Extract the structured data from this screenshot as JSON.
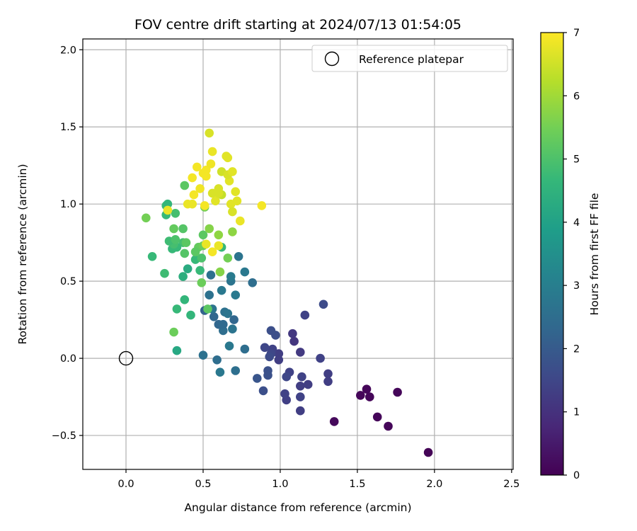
{
  "chart_data": {
    "type": "scatter",
    "title": "FOV centre drift starting at 2024/07/13 01:54:05",
    "xlabel": "Angular distance from reference (arcmin)",
    "ylabel": "Rotation from reference (arcmin)",
    "xlim": [
      -0.28,
      2.51
    ],
    "ylim": [
      -0.72,
      2.07
    ],
    "xticks": [
      0.0,
      0.5,
      1.0,
      1.5,
      2.0,
      2.5
    ],
    "xtick_labels": [
      "0.0",
      "0.5",
      "1.0",
      "1.5",
      "2.0",
      "2.5"
    ],
    "yticks": [
      -0.5,
      0.0,
      0.5,
      1.0,
      1.5,
      2.0
    ],
    "ytick_labels": [
      "−0.5",
      "0.0",
      "0.5",
      "1.0",
      "1.5",
      "2.0"
    ],
    "grid": true,
    "legend": {
      "placement": "upper-right",
      "entries": [
        {
          "label": "Reference platepar",
          "marker": "open-circle",
          "x": 0.0,
          "y": 0.0
        }
      ]
    },
    "colorbar": {
      "label": "Hours from first FF file",
      "colormap": "viridis",
      "range": [
        0,
        7
      ],
      "ticks": [
        0,
        1,
        2,
        3,
        4,
        5,
        6,
        7
      ],
      "tick_labels": [
        "0",
        "1",
        "2",
        "3",
        "4",
        "5",
        "6",
        "7"
      ]
    },
    "colormap_stops": [
      "#440154",
      "#482878",
      "#3e4989",
      "#31688e",
      "#26828e",
      "#1f9e89",
      "#35b779",
      "#6ece58",
      "#b5de2b",
      "#fde725"
    ],
    "points": [
      [
        1.96,
        -0.61,
        0.05
      ],
      [
        1.7,
        -0.44,
        0.1
      ],
      [
        1.63,
        -0.38,
        0.1
      ],
      [
        1.76,
        -0.22,
        0.1
      ],
      [
        1.52,
        -0.24,
        0.1
      ],
      [
        1.56,
        -0.2,
        0.1
      ],
      [
        1.58,
        -0.25,
        0.1
      ],
      [
        1.35,
        -0.41,
        0.15
      ],
      [
        1.13,
        -0.34,
        1.3
      ],
      [
        1.04,
        -0.27,
        1.35
      ],
      [
        1.03,
        -0.23,
        1.4
      ],
      [
        1.13,
        -0.25,
        1.4
      ],
      [
        1.13,
        -0.18,
        1.3
      ],
      [
        1.18,
        -0.17,
        1.3
      ],
      [
        1.31,
        -0.15,
        1.3
      ],
      [
        1.31,
        -0.1,
        1.3
      ],
      [
        1.14,
        -0.12,
        1.4
      ],
      [
        1.06,
        -0.09,
        1.4
      ],
      [
        1.04,
        -0.12,
        1.5
      ],
      [
        1.26,
        0.0,
        1.4
      ],
      [
        1.13,
        0.04,
        1.2
      ],
      [
        1.09,
        0.11,
        1.1
      ],
      [
        1.08,
        0.16,
        1.15
      ],
      [
        0.99,
        0.03,
        1.3
      ],
      [
        0.99,
        -0.01,
        1.3
      ],
      [
        0.95,
        0.06,
        1.4
      ],
      [
        0.9,
        0.07,
        1.5
      ],
      [
        0.94,
        0.03,
        1.5
      ],
      [
        0.93,
        0.01,
        1.6
      ],
      [
        0.92,
        -0.08,
        1.75
      ],
      [
        0.92,
        -0.11,
        1.75
      ],
      [
        0.89,
        -0.21,
        1.7
      ],
      [
        0.85,
        -0.13,
        1.85
      ],
      [
        0.94,
        0.18,
        1.7
      ],
      [
        0.97,
        0.15,
        1.7
      ],
      [
        1.16,
        0.28,
        1.4
      ],
      [
        1.28,
        0.35,
        1.6
      ],
      [
        0.71,
        -0.08,
        2.55
      ],
      [
        0.61,
        -0.09,
        2.8
      ],
      [
        0.59,
        -0.01,
        2.5
      ],
      [
        0.5,
        0.02,
        2.6
      ],
      [
        0.67,
        0.08,
        2.8
      ],
      [
        0.77,
        0.06,
        2.5
      ],
      [
        0.69,
        0.19,
        2.7
      ],
      [
        0.63,
        0.18,
        2.5
      ],
      [
        0.6,
        0.22,
        2.3
      ],
      [
        0.63,
        0.22,
        2.4
      ],
      [
        0.64,
        0.3,
        2.6
      ],
      [
        0.66,
        0.29,
        2.7
      ],
      [
        0.7,
        0.25,
        2.3
      ],
      [
        0.57,
        0.27,
        2.3
      ],
      [
        0.56,
        0.32,
        2.7
      ],
      [
        0.51,
        0.31,
        2.2
      ],
      [
        0.62,
        0.44,
        2.8
      ],
      [
        0.71,
        0.41,
        2.85
      ],
      [
        0.68,
        0.5,
        2.7
      ],
      [
        0.68,
        0.53,
        2.9
      ],
      [
        0.55,
        0.54,
        2.6
      ],
      [
        0.54,
        0.41,
        2.6
      ],
      [
        0.73,
        0.66,
        2.7
      ],
      [
        0.77,
        0.56,
        2.8
      ],
      [
        0.82,
        0.49,
        2.5
      ],
      [
        0.33,
        0.05,
        4.2
      ],
      [
        0.31,
        0.17,
        5.4
      ],
      [
        0.33,
        0.32,
        4.7
      ],
      [
        0.38,
        0.38,
        4.6
      ],
      [
        0.42,
        0.28,
        4.6
      ],
      [
        0.49,
        0.49,
        5.4
      ],
      [
        0.53,
        0.32,
        5.2
      ],
      [
        0.37,
        0.53,
        4.4
      ],
      [
        0.4,
        0.58,
        4.3
      ],
      [
        0.45,
        0.64,
        4.7
      ],
      [
        0.48,
        0.57,
        4.7
      ],
      [
        0.49,
        0.65,
        5.0
      ],
      [
        0.61,
        0.56,
        5.7
      ],
      [
        0.66,
        0.65,
        5.5
      ],
      [
        0.62,
        0.72,
        4.7
      ],
      [
        0.47,
        0.72,
        5.3
      ],
      [
        0.45,
        0.69,
        5.2
      ],
      [
        0.38,
        0.68,
        5.1
      ],
      [
        0.37,
        0.75,
        4.9
      ],
      [
        0.39,
        0.75,
        5.2
      ],
      [
        0.33,
        0.72,
        4.7
      ],
      [
        0.3,
        0.71,
        4.7
      ],
      [
        0.31,
        0.74,
        4.9
      ],
      [
        0.28,
        0.76,
        4.8
      ],
      [
        0.32,
        0.77,
        5.0
      ],
      [
        0.25,
        0.55,
        4.8
      ],
      [
        0.17,
        0.66,
        4.7
      ],
      [
        0.31,
        0.84,
        5.3
      ],
      [
        0.37,
        0.84,
        5.1
      ],
      [
        0.26,
        0.93,
        4.7
      ],
      [
        0.26,
        0.99,
        4.7
      ],
      [
        0.27,
        1.0,
        4.6
      ],
      [
        0.32,
        0.94,
        4.9
      ],
      [
        0.13,
        0.91,
        5.5
      ],
      [
        0.38,
        1.12,
        5.2
      ],
      [
        0.5,
        0.8,
        5.2
      ],
      [
        0.54,
        0.84,
        5.7
      ],
      [
        0.6,
        0.8,
        5.8
      ],
      [
        0.69,
        0.82,
        5.8
      ],
      [
        0.51,
        0.98,
        5.5
      ],
      [
        0.5,
        0.73,
        5.4
      ],
      [
        0.27,
        0.96,
        6.8
      ],
      [
        0.4,
        1.0,
        6.8
      ],
      [
        0.43,
        1.0,
        6.8
      ],
      [
        0.44,
        1.06,
        6.9
      ],
      [
        0.43,
        1.17,
        6.9
      ],
      [
        0.46,
        1.24,
        6.9
      ],
      [
        0.48,
        1.1,
        6.85
      ],
      [
        0.5,
        1.2,
        6.9
      ],
      [
        0.52,
        1.22,
        6.9
      ],
      [
        0.52,
        1.18,
        6.9
      ],
      [
        0.55,
        1.26,
        6.85
      ],
      [
        0.56,
        1.34,
        6.8
      ],
      [
        0.54,
        1.46,
        6.6
      ],
      [
        0.62,
        1.21,
        6.5
      ],
      [
        0.65,
        1.31,
        6.7
      ],
      [
        0.66,
        1.3,
        6.7
      ],
      [
        0.67,
        1.15,
        6.7
      ],
      [
        0.66,
        1.19,
        6.6
      ],
      [
        0.69,
        1.21,
        6.7
      ],
      [
        0.6,
        1.1,
        6.6
      ],
      [
        0.62,
        1.06,
        6.4
      ],
      [
        0.56,
        1.07,
        6.6
      ],
      [
        0.58,
        1.02,
        6.7
      ],
      [
        0.6,
        1.07,
        6.6
      ],
      [
        0.68,
        1.0,
        6.7
      ],
      [
        0.69,
        0.95,
        6.6
      ],
      [
        0.71,
        1.08,
        6.7
      ],
      [
        0.72,
        1.02,
        6.7
      ],
      [
        0.74,
        0.89,
        6.8
      ],
      [
        0.88,
        0.99,
        6.9
      ],
      [
        0.51,
        0.99,
        6.9
      ],
      [
        0.52,
        0.74,
        6.8
      ],
      [
        0.56,
        0.69,
        6.9
      ],
      [
        0.6,
        0.73,
        6.8
      ]
    ]
  }
}
